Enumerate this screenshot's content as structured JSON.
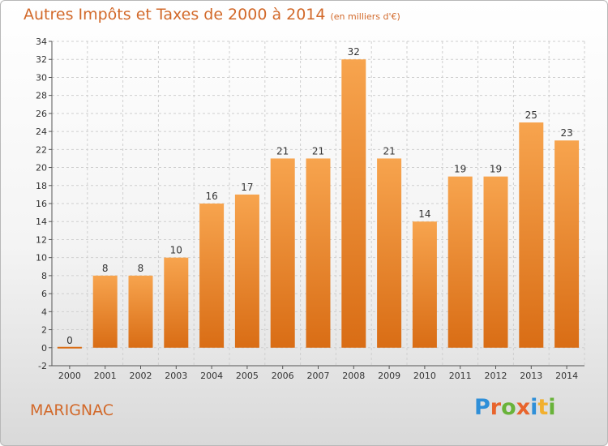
{
  "title": "Autres Impôts et Taxes de 2000 à 2014",
  "subtitle": "(en milliers d'€)",
  "place": "MARIGNAC",
  "logo": {
    "text": "Proxiti",
    "letter_colors": [
      "#2f8fd8",
      "#e8642c",
      "#69b33a",
      "#e8642c",
      "#2f8fd8",
      "#f2b02f",
      "#69b33a"
    ]
  },
  "colors": {
    "title": "#d2692a",
    "bar_top": "#f7a44e",
    "bar_bottom": "#d96d15",
    "axis": "#555555",
    "grid": "#cfcfcf"
  },
  "chart_data": {
    "type": "bar",
    "title": "Autres Impôts et Taxes de 2000 à 2014",
    "xlabel": "",
    "ylabel": "",
    "categories": [
      "2000",
      "2001",
      "2002",
      "2003",
      "2004",
      "2005",
      "2006",
      "2007",
      "2008",
      "2009",
      "2010",
      "2011",
      "2012",
      "2013",
      "2014"
    ],
    "values": [
      0,
      8,
      8,
      10,
      16,
      17,
      21,
      21,
      32,
      21,
      14,
      19,
      19,
      25,
      23
    ],
    "ylim": [
      -2,
      34
    ],
    "yticks": [
      -2,
      0,
      2,
      4,
      6,
      8,
      10,
      12,
      14,
      16,
      18,
      20,
      22,
      24,
      26,
      28,
      30,
      32,
      34
    ],
    "grid": true,
    "legend": "none"
  }
}
